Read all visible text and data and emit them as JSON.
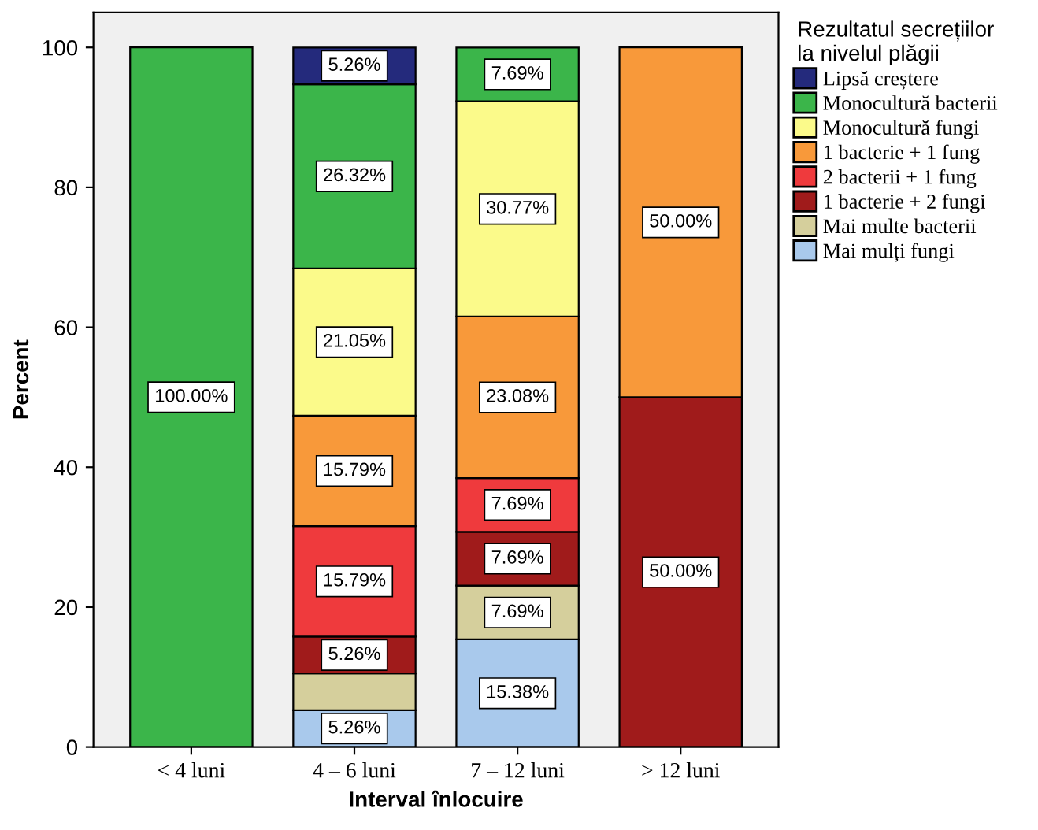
{
  "chart_data": {
    "type": "bar",
    "stacked": true,
    "xlabel": "Interval înlocuire",
    "ylabel": "Percent",
    "legend_title": "Rezultatul secrețiilor\nla nivelul plăgii",
    "legend": "right",
    "grid": false,
    "categories": [
      "< 4 luni",
      "4 – 6 luni",
      "7 – 12 luni",
      "> 12 luni"
    ],
    "ylim": [
      0,
      105
    ],
    "yticks": [
      0,
      20,
      40,
      60,
      80,
      100
    ],
    "series": [
      {
        "name": "Mai mulți fungi",
        "color": "#a9c9ec",
        "values": [
          0,
          5.26,
          15.38,
          0
        ],
        "value_labels": [
          null,
          "5.26%",
          "15.38%",
          null
        ]
      },
      {
        "name": "Mai multe bacterii",
        "color": "#d5cf9c",
        "values": [
          0,
          5.26,
          7.69,
          0
        ],
        "value_labels": [
          null,
          null,
          "7.69%",
          null
        ]
      },
      {
        "name": "1 bacterie + 2 fungi",
        "color": "#a01b1b",
        "values": [
          0,
          5.26,
          7.69,
          50.0
        ],
        "value_labels": [
          null,
          "5.26%",
          "7.69%",
          "50.00%"
        ]
      },
      {
        "name": "2 bacterii + 1 fung",
        "color": "#ef3a3d",
        "values": [
          0,
          15.79,
          7.69,
          0
        ],
        "value_labels": [
          null,
          "15.79%",
          "7.69%",
          null
        ]
      },
      {
        "name": "1 bacterie + 1 fung",
        "color": "#f8993a",
        "values": [
          0,
          15.79,
          23.08,
          50.0
        ],
        "value_labels": [
          null,
          "15.79%",
          "23.08%",
          "50.00%"
        ]
      },
      {
        "name": "Monocultură fungi",
        "color": "#fbfa8a",
        "values": [
          0,
          21.05,
          30.77,
          0
        ],
        "value_labels": [
          null,
          "21.05%",
          "30.77%",
          null
        ]
      },
      {
        "name": "Monocultură bacterii",
        "color": "#3bb54a",
        "values": [
          100.0,
          26.32,
          7.69,
          0
        ],
        "value_labels": [
          "100.00%",
          "26.32%",
          "7.69%",
          null
        ]
      },
      {
        "name": "Lipsă creștere",
        "color": "#242a7c",
        "values": [
          0,
          5.26,
          0,
          0
        ],
        "value_labels": [
          null,
          "5.26%",
          null,
          null
        ]
      }
    ]
  }
}
